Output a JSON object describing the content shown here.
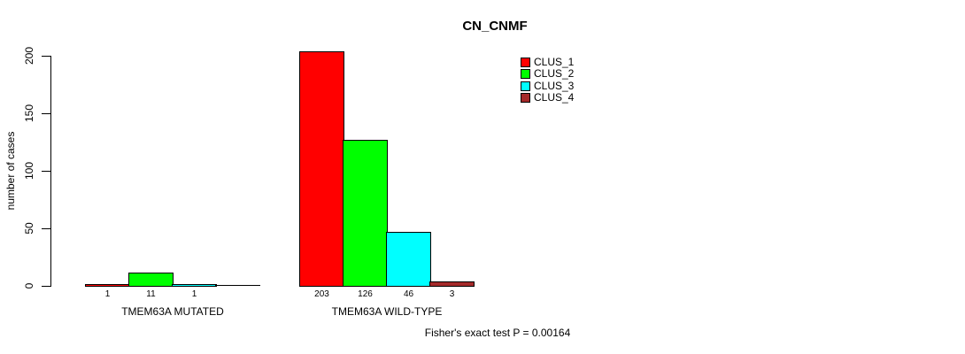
{
  "chart_data": {
    "type": "bar",
    "title": "CN_CNMF",
    "ylabel": "number of cases",
    "ylim": [
      0,
      200
    ],
    "yticks": [
      0,
      50,
      100,
      150,
      200
    ],
    "grid": false,
    "legend_position": "top-right",
    "categories": [
      "TMEM63A MUTATED",
      "TMEM63A WILD-TYPE"
    ],
    "series": [
      {
        "name": "CLUS_1",
        "color": "#FF0000",
        "values": [
          1,
          203
        ]
      },
      {
        "name": "CLUS_2",
        "color": "#00FF00",
        "values": [
          11,
          126
        ]
      },
      {
        "name": "CLUS_3",
        "color": "#00FFFF",
        "values": [
          1,
          46
        ]
      },
      {
        "name": "CLUS_4",
        "color": "#A52A2A",
        "values": [
          0,
          3
        ]
      }
    ],
    "bar_value_labels": [
      [
        "1",
        "11",
        "1",
        ""
      ],
      [
        "203",
        "126",
        "46",
        "3"
      ]
    ],
    "note": "Fisher's exact test P = 0.00164"
  }
}
